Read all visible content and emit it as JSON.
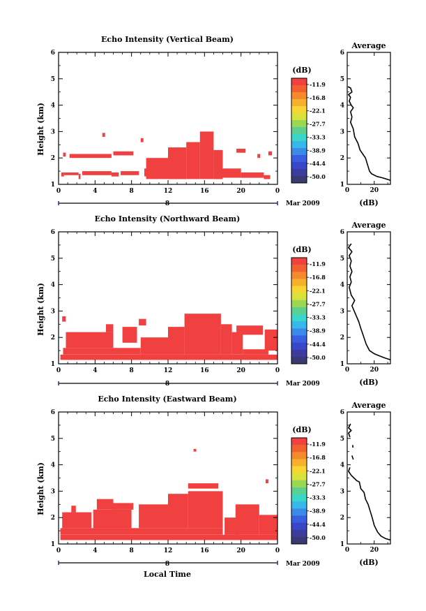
{
  "chart_data": [
    {
      "type": "heatmap",
      "title": "Echo Intensity (Vertical Beam)",
      "ylabel": "Height (km)",
      "x_ticks": [
        "0",
        "4",
        "8",
        "12",
        "16",
        "20",
        "0"
      ],
      "y_ticks": [
        "1",
        "2",
        "3",
        "4",
        "5",
        "6"
      ],
      "xlim": [
        0,
        24
      ],
      "ylim": [
        1,
        6
      ],
      "date_day": "8",
      "date_label": "Mar 2009",
      "echo_regions": [
        {
          "x": [
            0.3,
            0.6
          ],
          "y": [
            1.3,
            1.45
          ]
        },
        {
          "x": [
            0.6,
            2.2
          ],
          "y": [
            1.35,
            1.45
          ]
        },
        {
          "x": [
            2.2,
            2.4
          ],
          "y": [
            1.2,
            1.4
          ]
        },
        {
          "x": [
            2.6,
            5.8
          ],
          "y": [
            1.35,
            1.5
          ]
        },
        {
          "x": [
            5.8,
            6.6
          ],
          "y": [
            1.3,
            1.45
          ]
        },
        {
          "x": [
            6.8,
            8.8
          ],
          "y": [
            1.35,
            1.5
          ]
        },
        {
          "x": [
            9.4,
            10.0
          ],
          "y": [
            1.3,
            1.6
          ]
        },
        {
          "x": [
            9.6,
            12.0
          ],
          "y": [
            1.2,
            2.0
          ]
        },
        {
          "x": [
            12.0,
            14.0
          ],
          "y": [
            1.2,
            2.4
          ]
        },
        {
          "x": [
            14.0,
            15.5
          ],
          "y": [
            1.2,
            2.6
          ]
        },
        {
          "x": [
            15.5,
            17.0
          ],
          "y": [
            1.2,
            3.0
          ]
        },
        {
          "x": [
            17.0,
            18.0
          ],
          "y": [
            1.2,
            2.3
          ]
        },
        {
          "x": [
            18.0,
            20.0
          ],
          "y": [
            1.25,
            1.6
          ]
        },
        {
          "x": [
            20.0,
            22.5
          ],
          "y": [
            1.25,
            1.45
          ]
        },
        {
          "x": [
            22.5,
            23.2
          ],
          "y": [
            1.2,
            1.35
          ]
        },
        {
          "x": [
            0.5,
            0.8
          ],
          "y": [
            2.05,
            2.2
          ]
        },
        {
          "x": [
            1.2,
            5.8
          ],
          "y": [
            2.0,
            2.15
          ]
        },
        {
          "x": [
            6.0,
            8.2
          ],
          "y": [
            2.1,
            2.25
          ]
        },
        {
          "x": [
            4.8,
            5.1
          ],
          "y": [
            2.8,
            2.95
          ]
        },
        {
          "x": [
            9.0,
            9.3
          ],
          "y": [
            2.6,
            2.75
          ]
        },
        {
          "x": [
            19.5,
            20.5
          ],
          "y": [
            2.2,
            2.35
          ]
        },
        {
          "x": [
            21.8,
            22.1
          ],
          "y": [
            2.0,
            2.15
          ]
        },
        {
          "x": [
            23.0,
            23.4
          ],
          "y": [
            2.1,
            2.25
          ]
        }
      ],
      "cmap": {
        "unit": "(dB)",
        "labels": [
          "-11.9",
          "-16.8",
          "-22.1",
          "-27.7",
          "-33.3",
          "-38.9",
          "-44.4",
          "-50.0"
        ],
        "colors": [
          "#f04040",
          "#f26030",
          "#f48a2c",
          "#f6b02c",
          "#f8d632",
          "#d8e23c",
          "#9ad854",
          "#5cd090",
          "#3ad6c8",
          "#36b8ea",
          "#3a8ae8",
          "#3a5ee0",
          "#3846c8",
          "#3c3c9e",
          "#3a3a72"
        ]
      },
      "profile": {
        "title": "Average",
        "xlabel": "(dB)",
        "x_ticks": [
          "0",
          "20"
        ],
        "xlim": [
          0,
          32
        ],
        "y_ticks": [
          "1",
          "2",
          "3",
          "4",
          "5",
          "6"
        ],
        "points": [
          [
            0.5,
            4.7
          ],
          [
            2.5,
            4.65
          ],
          [
            3.5,
            4.5
          ],
          [
            1.0,
            4.4
          ],
          [
            2.5,
            4.3
          ],
          [
            1.5,
            4.15
          ],
          [
            3.0,
            4.0
          ],
          [
            4.5,
            3.9
          ],
          [
            2.5,
            3.75
          ],
          [
            3.5,
            3.55
          ],
          [
            2.5,
            3.35
          ],
          [
            4.5,
            3.1
          ],
          [
            5.5,
            2.8
          ],
          [
            8.0,
            2.55
          ],
          [
            9.5,
            2.3
          ],
          [
            11.5,
            2.15
          ],
          [
            13.5,
            2.0
          ],
          [
            15.0,
            1.75
          ],
          [
            16.5,
            1.5
          ],
          [
            18.0,
            1.4
          ],
          [
            22.0,
            1.3
          ],
          [
            26.0,
            1.25
          ],
          [
            29.0,
            1.2
          ],
          [
            32.0,
            1.15
          ]
        ]
      }
    },
    {
      "type": "heatmap",
      "title": "Echo Intensity (Northward Beam)",
      "ylabel": "Height (km)",
      "x_ticks": [
        "0",
        "4",
        "8",
        "12",
        "16",
        "20",
        "0"
      ],
      "y_ticks": [
        "1",
        "2",
        "3",
        "4",
        "5",
        "6"
      ],
      "xlim": [
        0,
        24
      ],
      "ylim": [
        1,
        6
      ],
      "date_day": "8",
      "date_label": "Mar 2009",
      "echo_regions": [
        {
          "x": [
            0.2,
            24.0
          ],
          "y": [
            1.15,
            1.35
          ]
        },
        {
          "x": [
            0.5,
            9.0
          ],
          "y": [
            1.35,
            1.6
          ]
        },
        {
          "x": [
            0.8,
            6.0
          ],
          "y": [
            1.6,
            2.2
          ]
        },
        {
          "x": [
            5.2,
            6.0
          ],
          "y": [
            2.2,
            2.5
          ]
        },
        {
          "x": [
            7.0,
            8.6
          ],
          "y": [
            1.8,
            2.4
          ]
        },
        {
          "x": [
            9.0,
            12.0
          ],
          "y": [
            1.35,
            2.0
          ]
        },
        {
          "x": [
            12.0,
            13.8
          ],
          "y": [
            1.35,
            2.4
          ]
        },
        {
          "x": [
            13.8,
            17.8
          ],
          "y": [
            1.35,
            2.9
          ]
        },
        {
          "x": [
            17.8,
            19.0
          ],
          "y": [
            1.35,
            2.5
          ]
        },
        {
          "x": [
            19.0,
            20.2
          ],
          "y": [
            1.35,
            2.2
          ]
        },
        {
          "x": [
            20.2,
            23.0
          ],
          "y": [
            1.35,
            1.55
          ]
        },
        {
          "x": [
            22.6,
            24.0
          ],
          "y": [
            1.5,
            2.3
          ]
        },
        {
          "x": [
            19.5,
            22.4
          ],
          "y": [
            2.1,
            2.45
          ]
        },
        {
          "x": [
            0.4,
            0.8
          ],
          "y": [
            2.6,
            2.8
          ]
        },
        {
          "x": [
            8.8,
            9.6
          ],
          "y": [
            2.45,
            2.7
          ]
        }
      ],
      "cmap": {
        "unit": "(dB)",
        "labels": [
          "-11.9",
          "-16.8",
          "-22.1",
          "-27.7",
          "-33.3",
          "-38.9",
          "-44.4",
          "-50.0"
        ],
        "colors": [
          "#f04040",
          "#f26030",
          "#f48a2c",
          "#f6b02c",
          "#f8d632",
          "#d8e23c",
          "#9ad854",
          "#5cd090",
          "#3ad6c8",
          "#36b8ea",
          "#3a8ae8",
          "#3a5ee0",
          "#3846c8",
          "#3c3c9e",
          "#3a3a72"
        ]
      },
      "profile": {
        "title": "Average",
        "xlabel": "(dB)",
        "x_ticks": [
          "0",
          "20"
        ],
        "xlim": [
          0,
          32
        ],
        "y_ticks": [
          "1",
          "2",
          "3",
          "4",
          "5",
          "6"
        ],
        "points": [
          [
            3.0,
            5.55
          ],
          [
            1.0,
            5.4
          ],
          [
            3.5,
            5.25
          ],
          [
            1.5,
            5.1
          ],
          [
            3.0,
            4.9
          ],
          [
            2.0,
            4.7
          ],
          [
            3.5,
            4.5
          ],
          [
            2.0,
            4.3
          ],
          [
            3.0,
            4.1
          ],
          [
            1.5,
            3.9
          ],
          [
            3.0,
            3.6
          ],
          [
            5.5,
            3.4
          ],
          [
            3.5,
            3.2
          ],
          [
            6.0,
            2.9
          ],
          [
            8.5,
            2.6
          ],
          [
            10.0,
            2.35
          ],
          [
            12.0,
            2.05
          ],
          [
            14.0,
            1.75
          ],
          [
            16.5,
            1.5
          ],
          [
            20.0,
            1.38
          ],
          [
            24.0,
            1.3
          ],
          [
            28.0,
            1.22
          ],
          [
            32.0,
            1.15
          ]
        ]
      }
    },
    {
      "type": "heatmap",
      "title": "Echo Intensity (Eastward Beam)",
      "ylabel": "Height (km)",
      "xlabel": "Local Time",
      "x_ticks": [
        "0",
        "4",
        "8",
        "12",
        "16",
        "20",
        "0"
      ],
      "y_ticks": [
        "1",
        "2",
        "3",
        "4",
        "5",
        "6"
      ],
      "xlim": [
        0,
        24
      ],
      "ylim": [
        1,
        6
      ],
      "date_day": "8",
      "date_label": "Mar 2009",
      "echo_regions": [
        {
          "x": [
            0.2,
            24.0
          ],
          "y": [
            1.15,
            1.35
          ]
        },
        {
          "x": [
            0.2,
            18.0
          ],
          "y": [
            1.35,
            1.6
          ]
        },
        {
          "x": [
            0.4,
            3.6
          ],
          "y": [
            1.6,
            2.2
          ]
        },
        {
          "x": [
            1.4,
            1.9
          ],
          "y": [
            2.2,
            2.45
          ]
        },
        {
          "x": [
            3.8,
            8.0
          ],
          "y": [
            1.6,
            2.3
          ]
        },
        {
          "x": [
            4.2,
            6.0
          ],
          "y": [
            2.3,
            2.7
          ]
        },
        {
          "x": [
            5.8,
            8.2
          ],
          "y": [
            2.3,
            2.55
          ]
        },
        {
          "x": [
            8.8,
            12.0
          ],
          "y": [
            1.6,
            2.5
          ]
        },
        {
          "x": [
            12.0,
            14.2
          ],
          "y": [
            1.6,
            2.9
          ]
        },
        {
          "x": [
            14.2,
            18.0
          ],
          "y": [
            1.6,
            3.0
          ]
        },
        {
          "x": [
            18.2,
            19.8
          ],
          "y": [
            1.35,
            2.0
          ]
        },
        {
          "x": [
            19.4,
            22.0
          ],
          "y": [
            1.35,
            2.5
          ]
        },
        {
          "x": [
            22.0,
            24.0
          ],
          "y": [
            1.35,
            2.1
          ]
        },
        {
          "x": [
            14.2,
            17.5
          ],
          "y": [
            3.1,
            3.3
          ]
        },
        {
          "x": [
            14.8,
            15.1
          ],
          "y": [
            4.5,
            4.6
          ]
        },
        {
          "x": [
            22.7,
            23.0
          ],
          "y": [
            3.3,
            3.45
          ]
        }
      ],
      "cmap": {
        "unit": "(dB)",
        "labels": [
          "-11.9",
          "-16.8",
          "-22.1",
          "-27.7",
          "-33.3",
          "-38.9",
          "-44.4",
          "-50.0"
        ],
        "colors": [
          "#f04040",
          "#f26030",
          "#f48a2c",
          "#f6b02c",
          "#f8d632",
          "#d8e23c",
          "#9ad854",
          "#5cd090",
          "#3ad6c8",
          "#36b8ea",
          "#3a8ae8",
          "#3a5ee0",
          "#3846c8",
          "#3c3c9e",
          "#3a3a72"
        ]
      },
      "profile": {
        "title": "Average",
        "xlabel": "(dB)",
        "x_ticks": [
          "0",
          "20"
        ],
        "xlim": [
          0,
          32
        ],
        "y_ticks": [
          "1",
          "2",
          "3",
          "4",
          "5",
          "6"
        ],
        "points": [
          [
            2.5,
            5.55
          ],
          [
            1.0,
            5.4
          ],
          [
            3.0,
            5.3
          ],
          [
            1.0,
            5.2
          ],
          [
            2.0,
            5.05
          ],
          null,
          [
            4.0,
            4.75
          ],
          [
            4.3,
            4.65
          ],
          null,
          [
            3.5,
            4.35
          ],
          [
            4.5,
            4.2
          ],
          null,
          [
            2.0,
            3.9
          ],
          [
            1.0,
            3.75
          ],
          [
            3.0,
            3.6
          ],
          [
            5.0,
            3.5
          ],
          [
            7.0,
            3.4
          ],
          [
            9.0,
            3.35
          ],
          [
            10.0,
            3.1
          ],
          [
            12.5,
            2.95
          ],
          [
            13.5,
            2.7
          ],
          [
            15.5,
            2.5
          ],
          [
            17.0,
            2.25
          ],
          [
            18.5,
            2.0
          ],
          [
            20.0,
            1.7
          ],
          [
            22.5,
            1.45
          ],
          [
            25.0,
            1.3
          ],
          [
            28.5,
            1.2
          ],
          [
            32.0,
            1.15
          ]
        ]
      }
    }
  ]
}
